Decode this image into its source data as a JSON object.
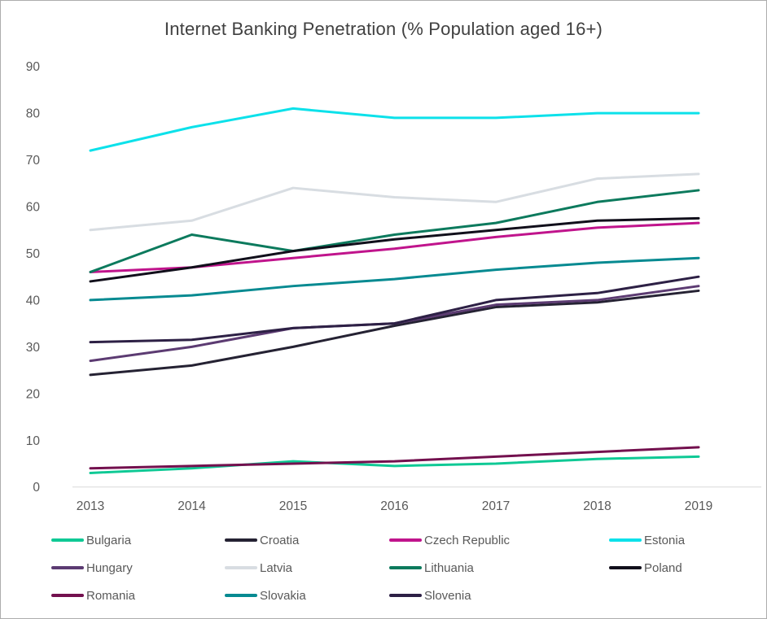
{
  "window": {
    "background": "#ffffff",
    "border_color": "#adadad",
    "title_color": "#404040",
    "label_color": "#595959",
    "axis_line_color": "#d9d9d9"
  },
  "chart_data": {
    "type": "line",
    "title": "Internet Banking Penetration (% Population aged 16+)",
    "xlabel": "",
    "ylabel": "",
    "categories": [
      2013,
      2014,
      2015,
      2016,
      2017,
      2018,
      2019
    ],
    "ylim": [
      0,
      90
    ],
    "yticks": [
      0,
      10,
      20,
      30,
      40,
      50,
      60,
      70,
      80,
      90
    ],
    "grid": false,
    "legend_position": "bottom",
    "series": [
      {
        "name": "Bulgaria",
        "color": "#0fc995",
        "values": [
          3,
          4,
          5.5,
          4.5,
          5,
          6,
          6.5
        ]
      },
      {
        "name": "Croatia",
        "color": "#252233",
        "values": [
          24,
          26,
          30,
          34.5,
          38.5,
          39.5,
          42
        ]
      },
      {
        "name": "Czech Republic",
        "color": "#c0148c",
        "values": [
          46,
          47,
          49,
          51,
          53.5,
          55.5,
          56.5
        ]
      },
      {
        "name": "Estonia",
        "color": "#0ce1ea",
        "values": [
          72,
          77,
          81,
          79,
          79,
          80,
          80
        ]
      },
      {
        "name": "Hungary",
        "color": "#5c3b72",
        "values": [
          27,
          30,
          34,
          35,
          39,
          40,
          43
        ]
      },
      {
        "name": "Latvia",
        "color": "#d8dde2",
        "values": [
          55,
          57,
          64,
          62,
          61,
          66,
          67
        ]
      },
      {
        "name": "Lithuania",
        "color": "#0c7a5d",
        "values": [
          46,
          54,
          50.5,
          54,
          56.5,
          61,
          63.5
        ]
      },
      {
        "name": "Poland",
        "color": "#110f1b",
        "values": [
          44,
          47,
          50.5,
          53,
          55,
          57,
          57.5
        ]
      },
      {
        "name": "Romania",
        "color": "#73104e",
        "values": [
          4,
          4.5,
          5,
          5.5,
          6.5,
          7.5,
          8.5
        ]
      },
      {
        "name": "Slovakia",
        "color": "#068a91",
        "values": [
          40,
          41,
          43,
          44.5,
          46.5,
          48,
          49
        ]
      },
      {
        "name": "Slovenia",
        "color": "#2d2045",
        "values": [
          31,
          31.5,
          34,
          35,
          40,
          41.5,
          45
        ]
      }
    ]
  }
}
